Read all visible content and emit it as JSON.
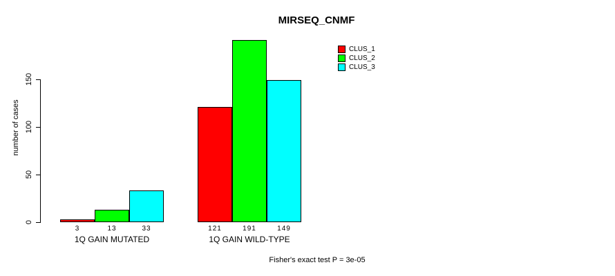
{
  "chart_data": {
    "type": "bar",
    "title": "MIRSEQ_CNMF",
    "ylabel": "number of cases",
    "xlabel": "",
    "categories": [
      "1Q GAIN MUTATED",
      "1Q GAIN WILD-TYPE"
    ],
    "series": [
      {
        "name": "CLUS_1",
        "color": "#ff0000",
        "values": [
          3,
          121
        ]
      },
      {
        "name": "CLUS_2",
        "color": "#00ff00",
        "values": [
          13,
          191
        ]
      },
      {
        "name": "CLUS_3",
        "color": "#00ffff",
        "values": [
          33,
          149
        ]
      }
    ],
    "yticks": [
      0,
      50,
      100,
      150
    ],
    "ylim": [
      0,
      200
    ],
    "grid": false,
    "bar_value_labels": true,
    "legend_position": "top-right",
    "annotation": "Fisher's exact test P = 3e-05"
  },
  "colors": {
    "background": "#ffffff",
    "axis": "#000000",
    "bar_border": "#000000"
  }
}
